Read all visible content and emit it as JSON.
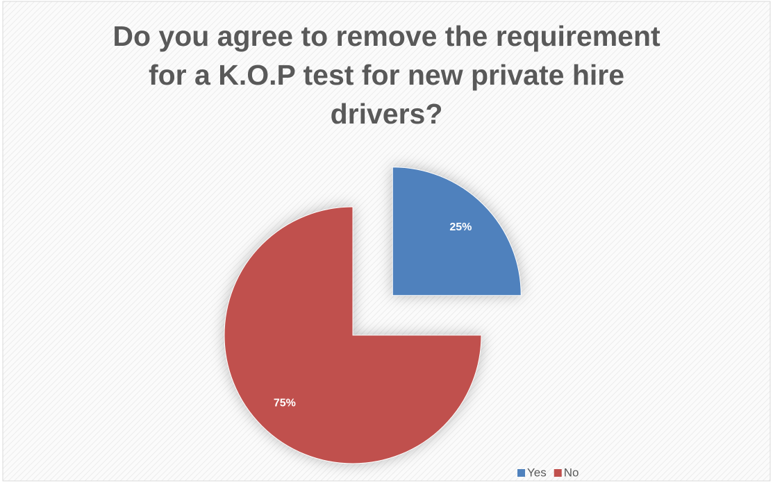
{
  "chart_data": {
    "type": "pie",
    "title": "Do you agree to remove the requirement for a K.O.P test for new private hire drivers?",
    "categories": [
      "Yes",
      "No"
    ],
    "values": [
      25,
      75
    ],
    "value_labels": [
      "25%",
      "75%"
    ],
    "colors": [
      "#4f81bd",
      "#c0504d"
    ],
    "explode": [
      true,
      false
    ],
    "legend": "bottom-right"
  }
}
